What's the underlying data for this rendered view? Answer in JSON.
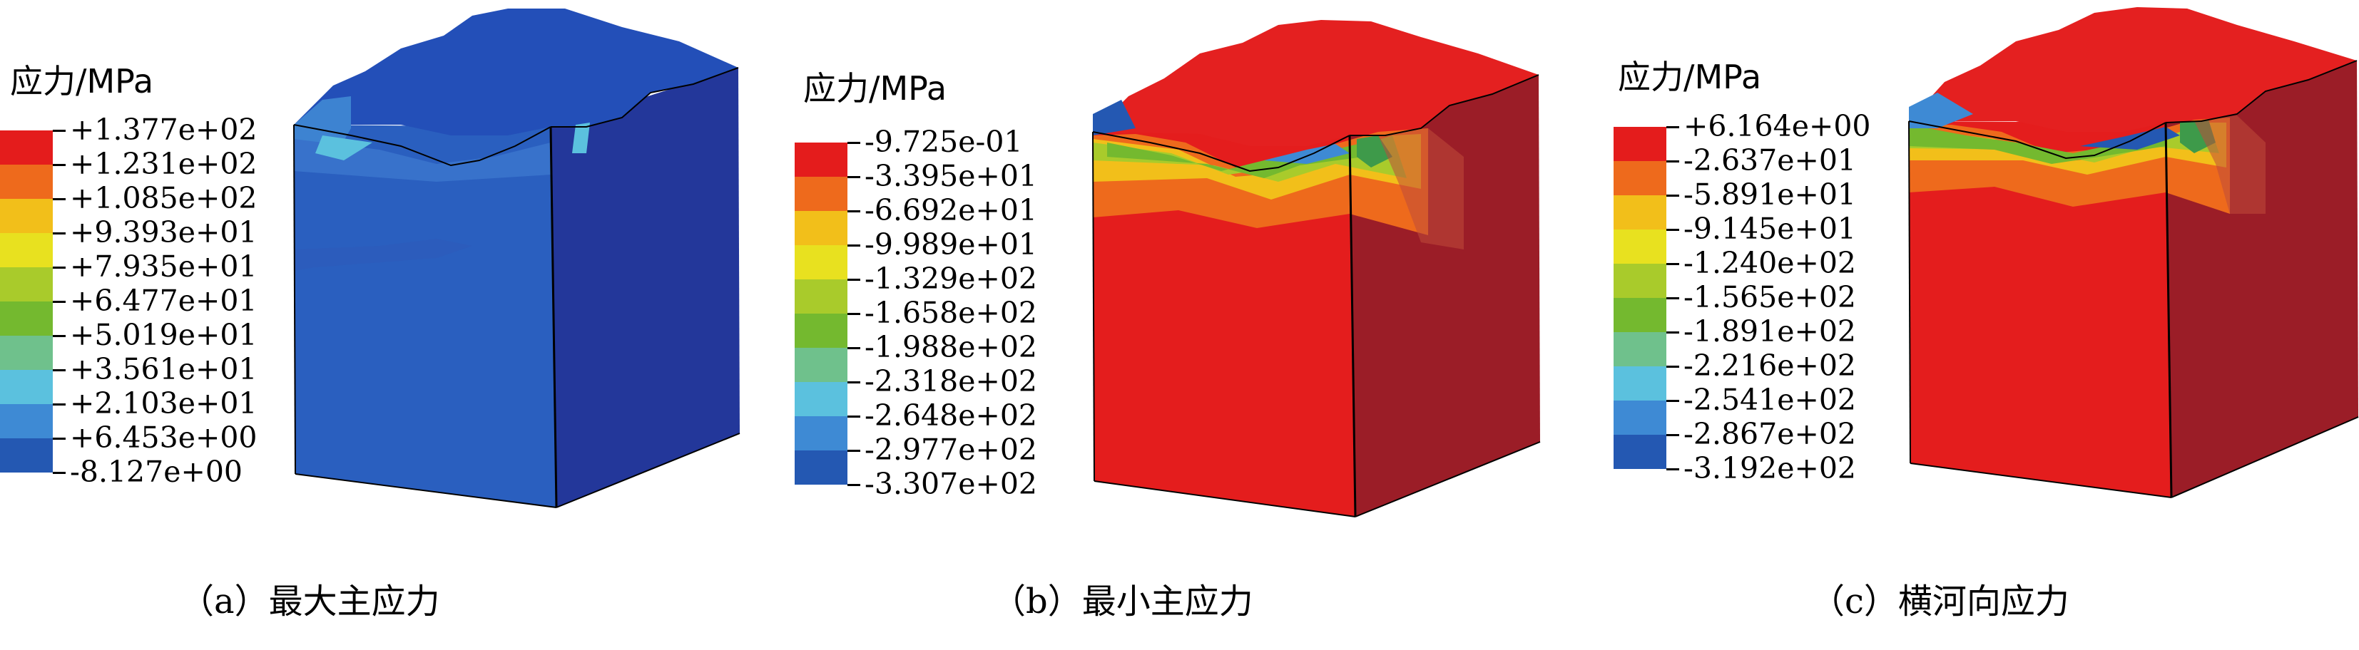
{
  "panels": [
    {
      "legend_title": "应力/MPa",
      "caption": "（a）最大主应力",
      "block_colors": {
        "front": "#2a5fbf",
        "side": "#23379a",
        "top": "#234fb8"
      },
      "legend": [
        {
          "label": "+1.377e+02",
          "color": "#e41c1c"
        },
        {
          "label": "+1.231e+02",
          "color": "#ee6a1c"
        },
        {
          "label": "+1.085e+02",
          "color": "#f2bf1a"
        },
        {
          "label": "+9.393e+01",
          "color": "#e8e11f"
        },
        {
          "label": "+7.935e+01",
          "color": "#a9cb2b"
        },
        {
          "label": "+6.477e+01",
          "color": "#74b92f"
        },
        {
          "label": "+5.019e+01",
          "color": "#6fc18c"
        },
        {
          "label": "+3.561e+01",
          "color": "#5bc1de"
        },
        {
          "label": "+2.103e+01",
          "color": "#3e8ad4"
        },
        {
          "label": "+6.453e+00",
          "color": "#2458b2"
        },
        {
          "label": "-8.127e+00",
          "color": null
        }
      ]
    },
    {
      "legend_title": "应力/MPa",
      "caption": "（b）最小主应力",
      "block_colors": {
        "front": "#e41d1d",
        "side": "#9b1d27",
        "top": "#e42020"
      },
      "legend": [
        {
          "label": "-9.725e-01",
          "color": "#e41c1c"
        },
        {
          "label": "-3.395e+01",
          "color": "#ee6a1c"
        },
        {
          "label": "-6.692e+01",
          "color": "#f2bf1a"
        },
        {
          "label": "-9.989e+01",
          "color": "#e8e11f"
        },
        {
          "label": "-1.329e+02",
          "color": "#a9cb2b"
        },
        {
          "label": "-1.658e+02",
          "color": "#74b92f"
        },
        {
          "label": "-1.988e+02",
          "color": "#6fc18c"
        },
        {
          "label": "-2.318e+02",
          "color": "#5bc1de"
        },
        {
          "label": "-2.648e+02",
          "color": "#3e8ad4"
        },
        {
          "label": "-2.977e+02",
          "color": "#2458b2"
        },
        {
          "label": "-3.307e+02",
          "color": null
        }
      ]
    },
    {
      "legend_title": "应力/MPa",
      "caption": "（c）横河向应力",
      "block_colors": {
        "front": "#e41d1d",
        "side": "#9b1d27",
        "top": "#e42020"
      },
      "legend": [
        {
          "label": "+6.164e+00",
          "color": "#e41c1c"
        },
        {
          "label": "-2.637e+01",
          "color": "#ee6a1c"
        },
        {
          "label": "-5.891e+01",
          "color": "#f2bf1a"
        },
        {
          "label": "-9.145e+01",
          "color": "#e8e11f"
        },
        {
          "label": "-1.240e+02",
          "color": "#a9cb2b"
        },
        {
          "label": "-1.565e+02",
          "color": "#74b92f"
        },
        {
          "label": "-1.891e+02",
          "color": "#6fc18c"
        },
        {
          "label": "-2.216e+02",
          "color": "#5bc1de"
        },
        {
          "label": "-2.541e+02",
          "color": "#3e8ad4"
        },
        {
          "label": "-2.867e+02",
          "color": "#2458b2"
        },
        {
          "label": "-3.192e+02",
          "color": null
        }
      ]
    }
  ]
}
